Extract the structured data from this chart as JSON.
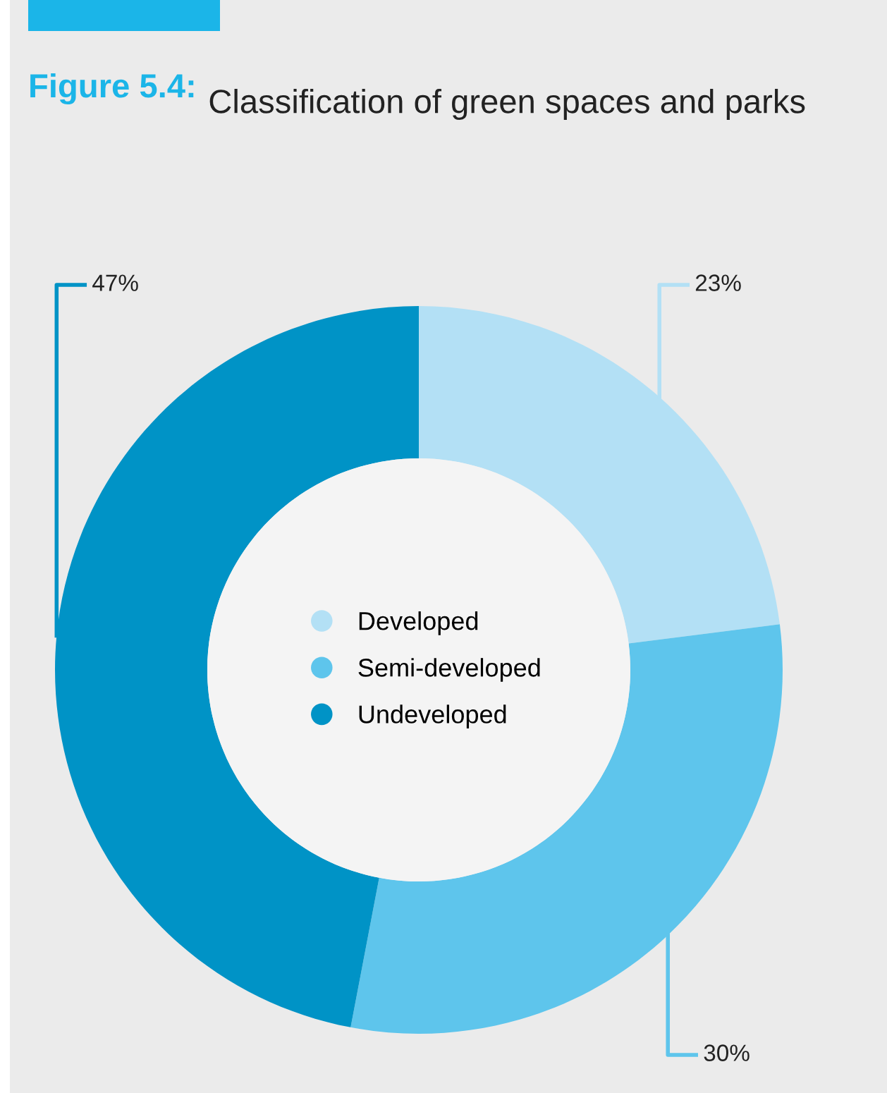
{
  "chart_data": {
    "type": "donut",
    "title": "Classification of green spaces and parks",
    "annotations": [
      "Figure 5.4:"
    ],
    "categories": [
      "Developed",
      "Semi-developed",
      "Undeveloped"
    ],
    "values": [
      23,
      30,
      47
    ],
    "colors": [
      "#b3e0f5",
      "#5ec5ec",
      "#0093c6"
    ],
    "value_labels": [
      "23%",
      "30%",
      "47%"
    ],
    "legend": "center"
  }
}
